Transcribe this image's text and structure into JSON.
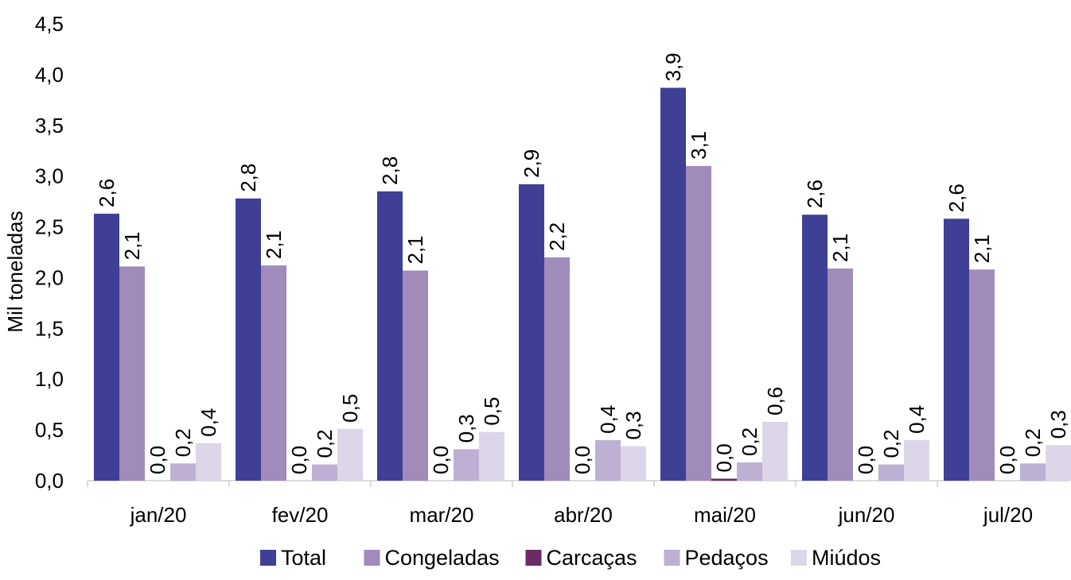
{
  "chart_data": {
    "type": "bar",
    "title": "",
    "xlabel": "",
    "ylabel": "Mil toneladas",
    "ylim": [
      0,
      4.5
    ],
    "ytick_step": 0.5,
    "ytick_labels": [
      "0,0",
      "0,5",
      "1,0",
      "1,5",
      "2,0",
      "2,5",
      "3,0",
      "3,5",
      "4,0",
      "4,5"
    ],
    "grid": false,
    "legend_position": "bottom",
    "categories": [
      "jan/20",
      "fev/20",
      "mar/20",
      "abr/20",
      "mai/20",
      "jun/20",
      "jul/20"
    ],
    "series": [
      {
        "name": "Total",
        "color": "#3f3f96",
        "values": [
          2.63,
          2.78,
          2.85,
          2.92,
          3.87,
          2.62,
          2.58
        ],
        "labels": [
          "2,6",
          "2,8",
          "2,8",
          "2,9",
          "3,9",
          "2,6",
          "2,6"
        ]
      },
      {
        "name": "Congeladas",
        "color": "#a08bbb",
        "values": [
          2.11,
          2.12,
          2.07,
          2.2,
          3.1,
          2.09,
          2.08
        ],
        "labels": [
          "2,1",
          "2,1",
          "2,1",
          "2,2",
          "3,1",
          "2,1",
          "2,1"
        ]
      },
      {
        "name": "Carcaças",
        "color": "#6b2c66",
        "values": [
          0.0,
          0.0,
          0.0,
          0.0,
          0.02,
          0.0,
          0.0
        ],
        "labels": [
          "0,0",
          "0,0",
          "0,0",
          "0,0",
          "0,0",
          "0,0",
          "0,0"
        ]
      },
      {
        "name": "Pedaços",
        "color": "#bdb0d4",
        "values": [
          0.17,
          0.16,
          0.31,
          0.4,
          0.18,
          0.16,
          0.17
        ],
        "labels": [
          "0,2",
          "0,2",
          "0,3",
          "0,4",
          "0,2",
          "0,2",
          "0,2"
        ]
      },
      {
        "name": "Miúdos",
        "color": "#ddd6e8",
        "values": [
          0.37,
          0.51,
          0.48,
          0.34,
          0.58,
          0.4,
          0.35
        ],
        "labels": [
          "0,4",
          "0,5",
          "0,5",
          "0,3",
          "0,6",
          "0,4",
          "0,3"
        ]
      }
    ]
  }
}
